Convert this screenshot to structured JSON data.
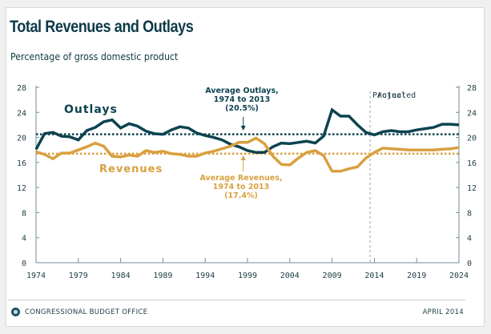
{
  "header": {
    "title": "Total Revenues and Outlays",
    "subtitle": "Percentage of gross domestic product"
  },
  "footer": {
    "organization": "CONGRESSIONAL BUDGET OFFICE",
    "date": "APRIL 2014",
    "logo_icon": "cbo-logo-icon"
  },
  "colors": {
    "outlays": "#0d4350",
    "revenues": "#d9a03f",
    "axis": "#6f8f99",
    "divider": "#b5c6cc",
    "text": "#1d3c45"
  },
  "chart_data": {
    "type": "line",
    "title": "Total Revenues and Outlays",
    "subtitle": "Percentage of gross domestic product",
    "xlabel": "",
    "ylabel": "Percentage of gross domestic product",
    "xlim": [
      1974,
      2024
    ],
    "ylim": [
      0,
      28
    ],
    "x_ticks": [
      1974,
      1979,
      1984,
      1989,
      1994,
      1999,
      2004,
      2009,
      2014,
      2019,
      2024
    ],
    "y_ticks": [
      0,
      4,
      8,
      12,
      16,
      20,
      24,
      28
    ],
    "y_axis_both_sides": true,
    "grid": false,
    "x": [
      1974,
      1975,
      1976,
      1977,
      1978,
      1979,
      1980,
      1981,
      1982,
      1983,
      1984,
      1985,
      1986,
      1987,
      1988,
      1989,
      1990,
      1991,
      1992,
      1993,
      1994,
      1995,
      1996,
      1997,
      1998,
      1999,
      2000,
      2001,
      2002,
      2003,
      2004,
      2005,
      2006,
      2007,
      2008,
      2009,
      2010,
      2011,
      2012,
      2013,
      2014,
      2015,
      2016,
      2017,
      2018,
      2019,
      2020,
      2021,
      2022,
      2023,
      2024
    ],
    "series": [
      {
        "name": "Outlays",
        "values": [
          18.1,
          20.6,
          20.8,
          20.2,
          20.1,
          19.6,
          21.1,
          21.6,
          22.5,
          22.8,
          21.5,
          22.2,
          21.8,
          21.0,
          20.6,
          20.5,
          21.2,
          21.7,
          21.5,
          20.7,
          20.3,
          20.0,
          19.6,
          18.9,
          18.5,
          17.9,
          17.6,
          17.6,
          18.5,
          19.1,
          19.0,
          19.2,
          19.4,
          19.1,
          20.2,
          24.4,
          23.4,
          23.4,
          22.0,
          20.8,
          20.4,
          20.9,
          21.1,
          20.9,
          20.9,
          21.2,
          21.4,
          21.6,
          22.1,
          22.1,
          22.0
        ]
      },
      {
        "name": "Revenues",
        "values": [
          17.7,
          17.3,
          16.6,
          17.5,
          17.5,
          18.0,
          18.5,
          19.1,
          18.6,
          17.0,
          16.9,
          17.2,
          17.0,
          17.9,
          17.6,
          17.8,
          17.4,
          17.3,
          17.0,
          17.0,
          17.5,
          17.8,
          18.2,
          18.6,
          19.2,
          19.2,
          19.9,
          19.0,
          17.0,
          15.7,
          15.6,
          16.7,
          17.6,
          17.9,
          17.1,
          14.6,
          14.6,
          15.0,
          15.3,
          16.7,
          17.6,
          18.3,
          18.2,
          18.1,
          18.0,
          18.0,
          18.0,
          18.0,
          18.1,
          18.2,
          18.4
        ]
      }
    ],
    "reference_lines": [
      {
        "name": "Average Outlays, 1974 to 2013",
        "value": 20.5,
        "style": "dotted",
        "color_series": "Outlays"
      },
      {
        "name": "Average Revenues, 1974 to 2013",
        "value": 17.4,
        "style": "dotted",
        "color_series": "Revenues"
      }
    ],
    "actual_projected_divider": 2013.5,
    "region_labels": [
      "Actual",
      "Projected"
    ],
    "series_labels": {
      "outlays": "Outlays",
      "revenues": "Revenues"
    },
    "annotations": [
      {
        "lines": [
          "Average Outlays,",
          "1974 to 2013",
          "(20.5%)"
        ],
        "series": "Outlays",
        "points_to_year": 1998.5
      },
      {
        "lines": [
          "Average Revenues,",
          "1974 to 2013",
          "(17.4%)"
        ],
        "series": "Revenues",
        "points_to_year": 1998.5
      }
    ],
    "legend": "none (inline labels)"
  }
}
